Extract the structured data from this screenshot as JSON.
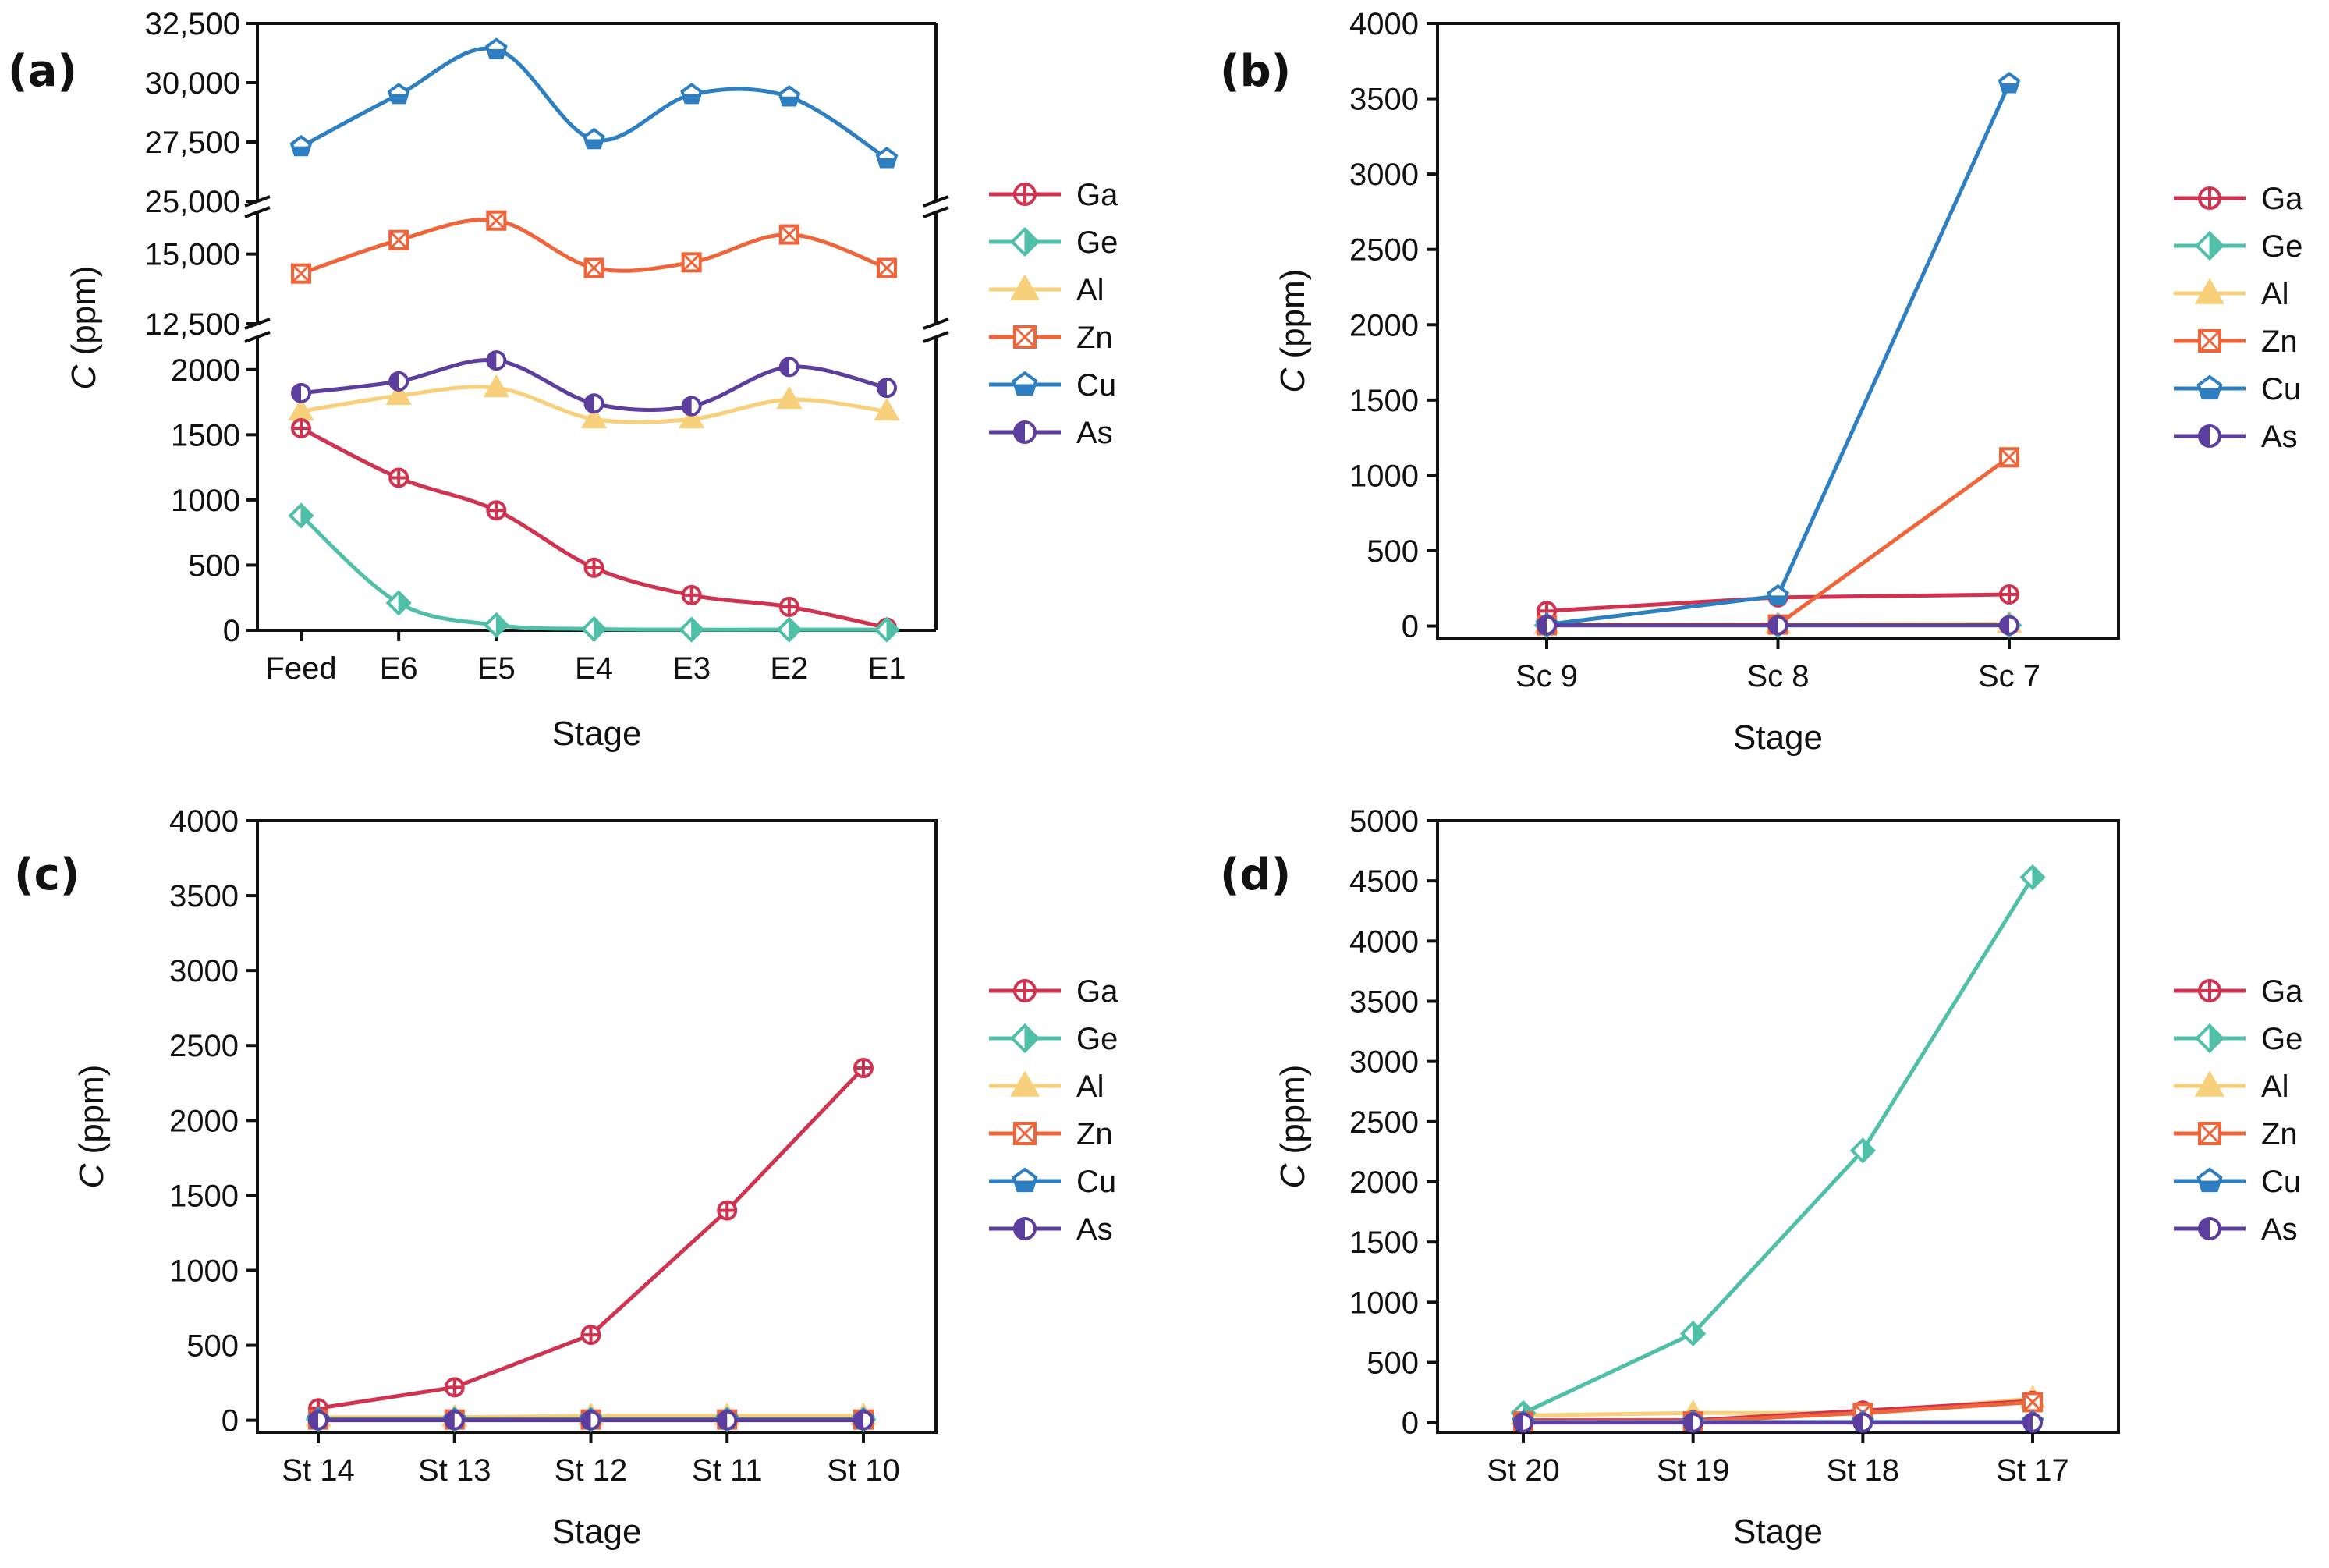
{
  "colors": {
    "Ga": "#d0334f",
    "Ge": "#4fbfa8",
    "Al": "#f8cf7a",
    "Zn": "#f0643a",
    "Cu": "#2e7fc1",
    "As": "#5b3e9e"
  },
  "legend": [
    "Ga",
    "Ge",
    "Al",
    "Zn",
    "Cu",
    "As"
  ],
  "chart_data": [
    {
      "panel": "(a)",
      "type": "line",
      "smooth": true,
      "broken_axis": true,
      "xlabel": "Stage",
      "ylabel": "C (ppm)",
      "categories": [
        "Feed",
        "E6",
        "E5",
        "E4",
        "E3",
        "E2",
        "E1"
      ],
      "y_segments": [
        {
          "range": [
            0,
            2250
          ],
          "ticks": [
            0,
            500,
            1000,
            1500,
            2000
          ],
          "tick_labels": [
            "0",
            "500",
            "1000",
            "1500",
            "2000"
          ]
        },
        {
          "range": [
            12500,
            16500
          ],
          "ticks": [
            12500,
            15000
          ],
          "tick_labels": [
            "12,500",
            "15,000"
          ]
        },
        {
          "range": [
            25000,
            32500
          ],
          "ticks": [
            25000,
            27500,
            30000,
            32500
          ],
          "tick_labels": [
            "25,000",
            "27,500",
            "30,000",
            "32,500"
          ]
        }
      ],
      "series": [
        {
          "name": "Ga",
          "values": [
            1550,
            1170,
            920,
            480,
            270,
            180,
            20
          ]
        },
        {
          "name": "Ge",
          "values": [
            880,
            210,
            40,
            10,
            5,
            5,
            5
          ]
        },
        {
          "name": "Al",
          "values": [
            1680,
            1800,
            1860,
            1620,
            1620,
            1770,
            1680
          ]
        },
        {
          "name": "Zn",
          "values": [
            14300,
            15500,
            16200,
            14500,
            14700,
            15700,
            14500
          ]
        },
        {
          "name": "Cu",
          "values": [
            27300,
            29500,
            31400,
            27600,
            29500,
            29400,
            26800
          ]
        },
        {
          "name": "As",
          "values": [
            1820,
            1910,
            2070,
            1740,
            1720,
            2020,
            1860
          ]
        }
      ]
    },
    {
      "panel": "(b)",
      "type": "line",
      "xlabel": "Stage",
      "ylabel": "C (ppm)",
      "categories": [
        "Sc 9",
        "Sc 8",
        "Sc 7"
      ],
      "ylim": [
        -80,
        4000
      ],
      "yticks": [
        0,
        500,
        1000,
        1500,
        2000,
        2500,
        3000,
        3500,
        4000
      ],
      "series": [
        {
          "name": "Ga",
          "values": [
            100,
            190,
            210
          ]
        },
        {
          "name": "Ge",
          "values": [
            5,
            5,
            5
          ]
        },
        {
          "name": "Al",
          "values": [
            10,
            10,
            15
          ]
        },
        {
          "name": "Zn",
          "values": [
            5,
            10,
            1120
          ]
        },
        {
          "name": "Cu",
          "values": [
            10,
            200,
            3600
          ]
        },
        {
          "name": "As",
          "values": [
            5,
            5,
            5
          ]
        }
      ]
    },
    {
      "panel": "(c)",
      "type": "line",
      "xlabel": "Stage",
      "ylabel": "C (ppm)",
      "categories": [
        "St 14",
        "St 13",
        "St 12",
        "St 11",
        "St 10"
      ],
      "ylim": [
        -80,
        4000
      ],
      "yticks": [
        0,
        500,
        1000,
        1500,
        2000,
        2500,
        3000,
        3500,
        4000
      ],
      "series": [
        {
          "name": "Ga",
          "values": [
            80,
            220,
            570,
            1400,
            2350
          ]
        },
        {
          "name": "Ge",
          "values": [
            5,
            5,
            5,
            5,
            5
          ]
        },
        {
          "name": "Al",
          "values": [
            20,
            20,
            30,
            30,
            30
          ]
        },
        {
          "name": "Zn",
          "values": [
            5,
            5,
            5,
            5,
            5
          ]
        },
        {
          "name": "Cu",
          "values": [
            5,
            5,
            5,
            5,
            5
          ]
        },
        {
          "name": "As",
          "values": [
            0,
            0,
            0,
            0,
            0
          ]
        }
      ]
    },
    {
      "panel": "(d)",
      "type": "line",
      "xlabel": "Stage",
      "ylabel": "C (ppm)",
      "categories": [
        "St 20",
        "St 19",
        "St 18",
        "St 17"
      ],
      "ylim": [
        -80,
        5000
      ],
      "yticks": [
        0,
        500,
        1000,
        1500,
        2000,
        2500,
        3000,
        3500,
        4000,
        4500,
        5000
      ],
      "series": [
        {
          "name": "Ga",
          "values": [
            20,
            20,
            100,
            180
          ]
        },
        {
          "name": "Ge",
          "values": [
            80,
            740,
            2260,
            4530
          ]
        },
        {
          "name": "Al",
          "values": [
            60,
            80,
            80,
            200
          ]
        },
        {
          "name": "Zn",
          "values": [
            10,
            10,
            80,
            170
          ]
        },
        {
          "name": "Cu",
          "values": [
            5,
            5,
            5,
            5
          ]
        },
        {
          "name": "As",
          "values": [
            0,
            0,
            0,
            0
          ]
        }
      ]
    }
  ]
}
